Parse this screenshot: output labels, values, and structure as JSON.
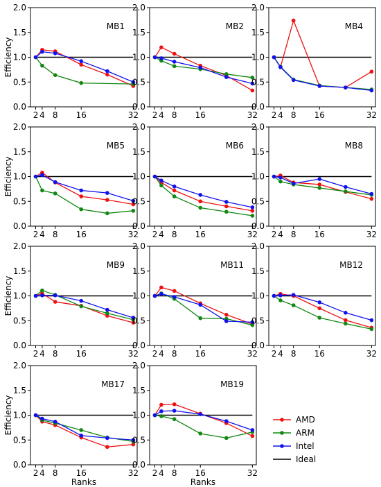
{
  "chart_data": [
    {
      "type": "line",
      "title": "MB1",
      "x": [
        2,
        4,
        8,
        16,
        24,
        32
      ],
      "ylim": [
        0,
        2
      ],
      "xticks": [
        2,
        4,
        8,
        16,
        32
      ],
      "yticks": [
        0,
        0.5,
        1,
        1.5,
        2
      ],
      "ylabel": "Efficiency",
      "xlabel": "",
      "series": [
        {
          "name": "AMD",
          "values": [
            1.0,
            1.15,
            1.12,
            0.85,
            0.65,
            0.42
          ]
        },
        {
          "name": "ARM",
          "values": [
            1.0,
            0.83,
            0.64,
            0.48,
            null,
            0.46
          ]
        },
        {
          "name": "Intel",
          "values": [
            1.0,
            1.11,
            1.08,
            0.92,
            0.72,
            0.5
          ]
        },
        {
          "name": "Ideal",
          "values": [
            1,
            1,
            1,
            1,
            1,
            1
          ]
        }
      ]
    },
    {
      "type": "line",
      "title": "MB2",
      "x": [
        2,
        4,
        8,
        16,
        24,
        32
      ],
      "ylim": [
        0,
        2
      ],
      "xticks": [
        2,
        4,
        8,
        16,
        32
      ],
      "yticks": [
        0,
        0.5,
        1,
        1.5,
        2
      ],
      "ylabel": "",
      "xlabel": "",
      "series": [
        {
          "name": "AMD",
          "values": [
            1.0,
            1.2,
            1.07,
            0.83,
            0.63,
            0.33
          ]
        },
        {
          "name": "ARM",
          "values": [
            1.0,
            0.93,
            0.82,
            0.76,
            0.66,
            0.59
          ]
        },
        {
          "name": "Intel",
          "values": [
            1.0,
            0.98,
            0.91,
            0.79,
            0.6,
            0.47
          ]
        },
        {
          "name": "Ideal",
          "values": [
            1,
            1,
            1,
            1,
            1,
            1
          ]
        }
      ]
    },
    {
      "type": "line",
      "title": "MB4",
      "x": [
        2,
        4,
        8,
        16,
        24,
        32
      ],
      "ylim": [
        0,
        2
      ],
      "xticks": [
        2,
        4,
        8,
        16,
        32
      ],
      "yticks": [
        0,
        0.5,
        1,
        1.5,
        2
      ],
      "ylabel": "",
      "xlabel": "",
      "series": [
        {
          "name": "AMD",
          "values": [
            1.0,
            0.8,
            1.74,
            0.42,
            0.39,
            0.71
          ]
        },
        {
          "name": "ARM",
          "values": [
            1.0,
            0.81,
            0.55,
            0.43,
            0.39,
            0.35
          ]
        },
        {
          "name": "Intel",
          "values": [
            1.0,
            0.8,
            0.54,
            0.42,
            0.39,
            0.33
          ]
        },
        {
          "name": "Ideal",
          "values": [
            1,
            1,
            1,
            1,
            1,
            1
          ]
        }
      ]
    },
    {
      "type": "line",
      "title": "MB5",
      "x": [
        2,
        4,
        8,
        16,
        24,
        32
      ],
      "ylim": [
        0,
        2
      ],
      "xticks": [
        2,
        4,
        8,
        16,
        32
      ],
      "yticks": [
        0,
        0.5,
        1,
        1.5,
        2
      ],
      "ylabel": "Efficiency",
      "xlabel": "",
      "series": [
        {
          "name": "AMD",
          "values": [
            1.0,
            1.08,
            0.88,
            0.6,
            0.53,
            0.44
          ]
        },
        {
          "name": "ARM",
          "values": [
            1.0,
            0.72,
            0.66,
            0.34,
            0.26,
            0.31
          ]
        },
        {
          "name": "Intel",
          "values": [
            1.0,
            1.03,
            0.89,
            0.72,
            0.67,
            0.51
          ]
        },
        {
          "name": "Ideal",
          "values": [
            1,
            1,
            1,
            1,
            1,
            1
          ]
        }
      ]
    },
    {
      "type": "line",
      "title": "MB6",
      "x": [
        2,
        4,
        8,
        16,
        24,
        32
      ],
      "ylim": [
        0,
        2
      ],
      "xticks": [
        2,
        4,
        8,
        16,
        32
      ],
      "yticks": [
        0,
        0.5,
        1,
        1.5,
        2
      ],
      "ylabel": "",
      "xlabel": "",
      "series": [
        {
          "name": "AMD",
          "values": [
            1.0,
            0.88,
            0.72,
            0.5,
            0.4,
            0.31
          ]
        },
        {
          "name": "ARM",
          "values": [
            1.0,
            0.82,
            0.6,
            0.37,
            0.29,
            0.21
          ]
        },
        {
          "name": "Intel",
          "values": [
            1.0,
            0.92,
            0.8,
            0.63,
            0.49,
            0.38
          ]
        },
        {
          "name": "Ideal",
          "values": [
            1,
            1,
            1,
            1,
            1,
            1
          ]
        }
      ]
    },
    {
      "type": "line",
      "title": "MB8",
      "x": [
        2,
        4,
        8,
        16,
        24,
        32
      ],
      "ylim": [
        0,
        2
      ],
      "xticks": [
        2,
        4,
        8,
        16,
        32
      ],
      "yticks": [
        0,
        0.5,
        1,
        1.5,
        2
      ],
      "ylabel": "",
      "xlabel": "",
      "series": [
        {
          "name": "AMD",
          "values": [
            1.0,
            1.02,
            0.88,
            0.84,
            0.69,
            0.55
          ]
        },
        {
          "name": "ARM",
          "values": [
            1.0,
            0.9,
            0.84,
            0.77,
            0.7,
            0.63
          ]
        },
        {
          "name": "Intel",
          "values": [
            1.0,
            0.98,
            0.86,
            0.95,
            0.79,
            0.65
          ]
        },
        {
          "name": "Ideal",
          "values": [
            1,
            1,
            1,
            1,
            1,
            1
          ]
        }
      ]
    },
    {
      "type": "line",
      "title": "MB9",
      "x": [
        2,
        4,
        8,
        16,
        24,
        32
      ],
      "ylim": [
        0,
        2
      ],
      "xticks": [
        2,
        4,
        8,
        16,
        32
      ],
      "yticks": [
        0,
        0.5,
        1,
        1.5,
        2
      ],
      "ylabel": "Efficiency",
      "xlabel": "",
      "series": [
        {
          "name": "AMD",
          "values": [
            1.0,
            1.05,
            0.88,
            0.8,
            0.6,
            0.46
          ]
        },
        {
          "name": "ARM",
          "values": [
            1.0,
            1.11,
            1.02,
            0.79,
            0.65,
            0.52
          ]
        },
        {
          "name": "Intel",
          "values": [
            1.0,
            1.01,
            1.01,
            0.9,
            0.72,
            0.56
          ]
        },
        {
          "name": "Ideal",
          "values": [
            1,
            1,
            1,
            1,
            1,
            1
          ]
        }
      ]
    },
    {
      "type": "line",
      "title": "MB11",
      "x": [
        2,
        4,
        8,
        16,
        24,
        32
      ],
      "ylim": [
        0,
        2
      ],
      "xticks": [
        2,
        4,
        8,
        16,
        32
      ],
      "yticks": [
        0,
        0.5,
        1,
        1.5,
        2
      ],
      "ylabel": "",
      "xlabel": "",
      "series": [
        {
          "name": "AMD",
          "values": [
            1.0,
            1.17,
            1.1,
            0.85,
            0.62,
            0.43
          ]
        },
        {
          "name": "ARM",
          "values": [
            1.0,
            1.05,
            0.94,
            0.55,
            0.54,
            0.41
          ]
        },
        {
          "name": "Intel",
          "values": [
            1.0,
            1.04,
            0.98,
            0.82,
            0.49,
            0.47
          ]
        },
        {
          "name": "Ideal",
          "values": [
            1,
            1,
            1,
            1,
            1,
            1
          ]
        }
      ]
    },
    {
      "type": "line",
      "title": "MB12",
      "x": [
        2,
        4,
        8,
        16,
        24,
        32
      ],
      "ylim": [
        0,
        2
      ],
      "xticks": [
        2,
        4,
        8,
        16,
        32
      ],
      "yticks": [
        0,
        0.5,
        1,
        1.5,
        2
      ],
      "ylabel": "",
      "xlabel": "",
      "series": [
        {
          "name": "AMD",
          "values": [
            1.0,
            1.04,
            1.0,
            0.75,
            0.51,
            0.36
          ]
        },
        {
          "name": "ARM",
          "values": [
            1.0,
            0.91,
            0.81,
            0.56,
            0.44,
            0.33
          ]
        },
        {
          "name": "Intel",
          "values": [
            1.0,
            1.01,
            1.02,
            0.87,
            0.66,
            0.51
          ]
        },
        {
          "name": "Ideal",
          "values": [
            1,
            1,
            1,
            1,
            1,
            1
          ]
        }
      ]
    },
    {
      "type": "line",
      "title": "MB17",
      "x": [
        2,
        4,
        8,
        16,
        24,
        32
      ],
      "ylim": [
        0,
        2
      ],
      "xticks": [
        2,
        4,
        8,
        16,
        32
      ],
      "yticks": [
        0,
        0.5,
        1,
        1.5,
        2
      ],
      "ylabel": "Efficiency",
      "xlabel": "Ranks",
      "series": [
        {
          "name": "AMD",
          "values": [
            1.0,
            0.87,
            0.8,
            0.55,
            0.36,
            0.41
          ]
        },
        {
          "name": "ARM",
          "values": [
            1.0,
            0.9,
            0.84,
            0.7,
            0.55,
            0.47
          ]
        },
        {
          "name": "Intel",
          "values": [
            1.0,
            0.93,
            0.87,
            0.59,
            0.54,
            0.5
          ]
        },
        {
          "name": "Ideal",
          "values": [
            1,
            1,
            1,
            1,
            1,
            1
          ]
        }
      ]
    },
    {
      "type": "line",
      "title": "MB19",
      "x": [
        2,
        4,
        8,
        16,
        24,
        32
      ],
      "ylim": [
        0,
        2
      ],
      "xticks": [
        2,
        4,
        8,
        16,
        32
      ],
      "yticks": [
        0,
        0.5,
        1,
        1.5,
        2
      ],
      "ylabel": "",
      "xlabel": "Ranks",
      "series": [
        {
          "name": "AMD",
          "values": [
            1.0,
            1.21,
            1.22,
            1.03,
            0.84,
            0.58
          ]
        },
        {
          "name": "ARM",
          "values": [
            1.0,
            0.98,
            0.92,
            0.63,
            0.54,
            0.66
          ]
        },
        {
          "name": "Intel",
          "values": [
            1.0,
            1.08,
            1.09,
            1.02,
            0.88,
            0.7
          ]
        },
        {
          "name": "Ideal",
          "values": [
            1,
            1,
            1,
            1,
            1,
            1
          ]
        }
      ]
    }
  ],
  "legend": {
    "placement": "bottom-right",
    "entries": [
      {
        "label": "AMD",
        "color": "#ee1111"
      },
      {
        "label": "ARM",
        "color": "#118811"
      },
      {
        "label": "Intel",
        "color": "#1111ee"
      },
      {
        "label": "Ideal",
        "color": "#000000"
      }
    ]
  }
}
